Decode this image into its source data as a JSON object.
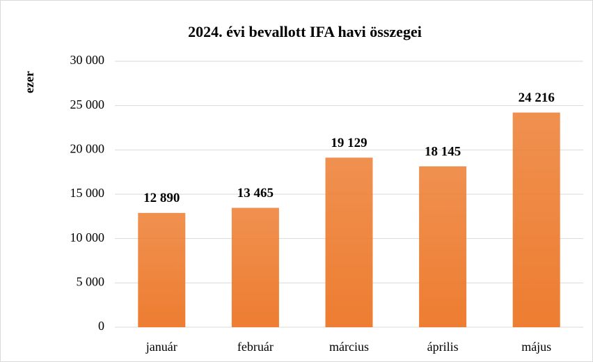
{
  "chart_data": {
    "type": "bar",
    "title": "2024. évi bevallott IFA havi összegei",
    "y_label": "ezer",
    "categories": [
      "január",
      "február",
      "március",
      "április",
      "május"
    ],
    "values": [
      12890,
      13465,
      19129,
      18145,
      24216
    ],
    "value_labels": [
      "12 890",
      "13 465",
      "19 129",
      "18 145",
      "24 216"
    ],
    "color": "#ed7d31",
    "ylim": [
      0,
      30000
    ],
    "yticks": [
      0,
      {
        "value": 5000,
        "label": "5 000"
      },
      {
        "value": 10000,
        "label": "10 000"
      },
      {
        "value": 15000,
        "label": "15 000"
      },
      {
        "value": 20000,
        "label": "20 000"
      },
      {
        "value": 25000,
        "label": "25 000"
      },
      {
        "value": 30000,
        "label": "30 000"
      }
    ],
    "grid": true
  }
}
